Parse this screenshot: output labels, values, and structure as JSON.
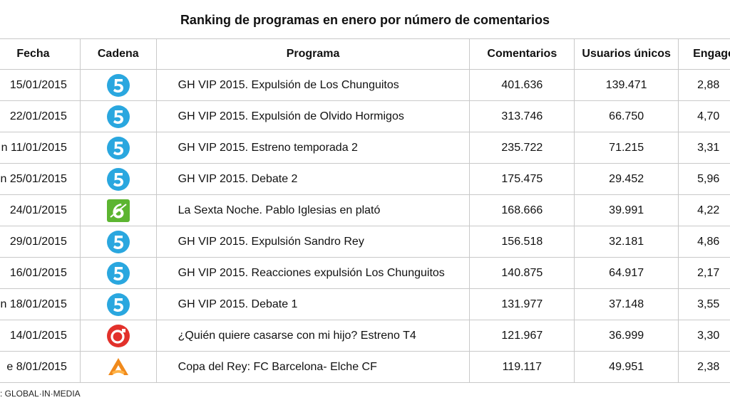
{
  "title": "Ranking de programas en enero por número de comentarios",
  "columns": [
    "Fecha",
    "Cadena",
    "Programa",
    "Comentarios",
    "Usuarios únicos",
    "Engager"
  ],
  "rows": [
    {
      "fecha": "15/01/2015",
      "cadena_icon": "telecinco-logo-icon",
      "programa": "GH VIP 2015. Expulsión de Los Chunguitos",
      "comentarios": "401.636",
      "usuarios": "139.471",
      "engagement": "2,88"
    },
    {
      "fecha": "22/01/2015",
      "cadena_icon": "telecinco-logo-icon",
      "programa": "GH VIP 2015. Expulsión de Olvido Hormigos",
      "comentarios": "313.746",
      "usuarios": "66.750",
      "engagement": "4,70"
    },
    {
      "fecha": "n 11/01/2015",
      "cadena_icon": "telecinco-logo-icon",
      "programa": "GH VIP 2015. Estreno temporada 2",
      "comentarios": "235.722",
      "usuarios": "71.215",
      "engagement": "3,31"
    },
    {
      "fecha": "n 25/01/2015",
      "cadena_icon": "telecinco-logo-icon",
      "programa": "GH VIP 2015. Debate 2",
      "comentarios": "175.475",
      "usuarios": "29.452",
      "engagement": "5,96"
    },
    {
      "fecha": "24/01/2015",
      "cadena_icon": "lasexta-logo-icon",
      "programa": "La Sexta Noche. Pablo Iglesias en plató",
      "comentarios": "168.666",
      "usuarios": "39.991",
      "engagement": "4,22"
    },
    {
      "fecha": "29/01/2015",
      "cadena_icon": "telecinco-logo-icon",
      "programa": "GH VIP 2015. Expulsión Sandro Rey",
      "comentarios": "156.518",
      "usuarios": "32.181",
      "engagement": "4,86"
    },
    {
      "fecha": "16/01/2015",
      "cadena_icon": "telecinco-logo-icon",
      "programa": "GH VIP 2015. Reacciones expulsión Los Chunguitos",
      "comentarios": "140.875",
      "usuarios": "64.917",
      "engagement": "2,17"
    },
    {
      "fecha": "n 18/01/2015",
      "cadena_icon": "telecinco-logo-icon",
      "programa": "GH VIP 2015. Debate 1",
      "comentarios": "131.977",
      "usuarios": "37.148",
      "engagement": "3,55"
    },
    {
      "fecha": "14/01/2015",
      "cadena_icon": "cuatro-logo-icon",
      "programa": "¿Quién quiere casarse con mi hijo? Estreno T4",
      "comentarios": "121.967",
      "usuarios": "36.999",
      "engagement": "3,30"
    },
    {
      "fecha": "e 8/01/2015",
      "cadena_icon": "antena3-logo-icon",
      "programa": "Copa del Rey: FC Barcelona- Elche CF",
      "comentarios": "119.117",
      "usuarios": "49.951",
      "engagement": "2,38"
    }
  ],
  "footer": ": GLOBAL·IN·MEDIA",
  "colors": {
    "telecinco": "#2aa7df",
    "lasexta": "#5cb531",
    "cuatro": "#e2312b",
    "antena3": "#f08a1c",
    "border": "#c9c9c9"
  }
}
